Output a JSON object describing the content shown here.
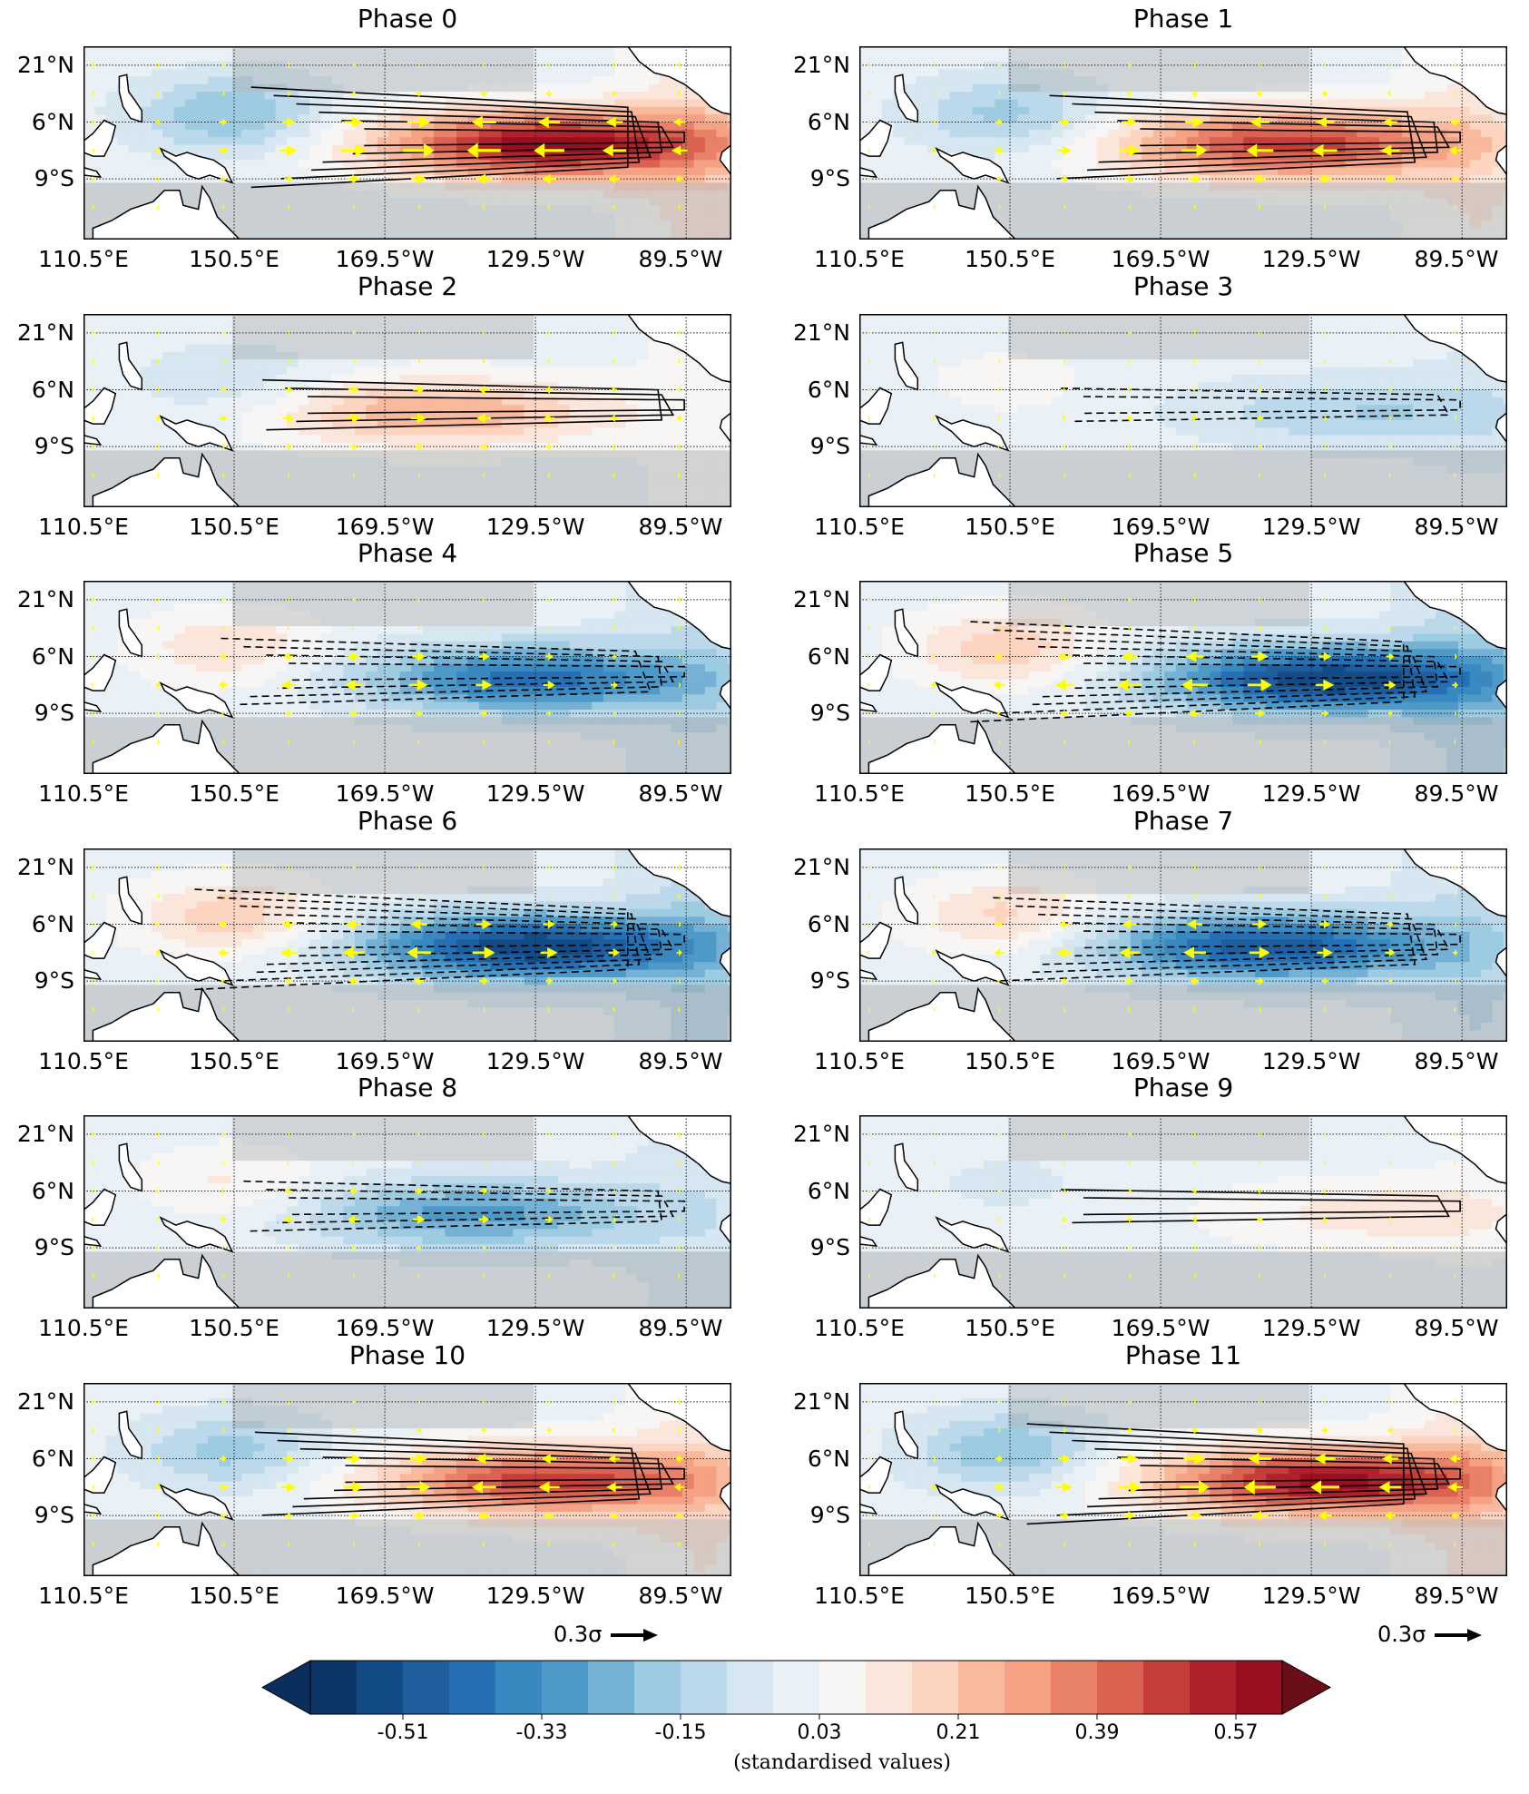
{
  "chart_data": {
    "type": "heatmap",
    "description_units": "standardised values",
    "map_extent": {
      "lon_min": 110.5,
      "lon_max": 282.5,
      "lat_min": -25,
      "lat_max": 26
    },
    "lat_ticks": [
      {
        "value": 21,
        "label": "21°N"
      },
      {
        "value": 6,
        "label": "6°N"
      },
      {
        "value": -9,
        "label": "9°S"
      }
    ],
    "lon_ticks": [
      {
        "value": 110.5,
        "label": "110.5°E"
      },
      {
        "value": 150.5,
        "label": "150.5°E"
      },
      {
        "value": 190.5,
        "label": "169.5°W"
      },
      {
        "value": 230.5,
        "label": "129.5°W"
      },
      {
        "value": 270.5,
        "label": "89.5°W"
      }
    ],
    "panels": [
      {
        "title": "Phase 0",
        "sst_amp": 0.62,
        "sst_center_lon": 235,
        "wind_amp": 0.35,
        "wind_center_lon": 215,
        "contour_sign": 1
      },
      {
        "title": "Phase 1",
        "sst_amp": 0.5,
        "sst_center_lon": 225,
        "wind_amp": 0.28,
        "wind_center_lon": 215,
        "contour_sign": 1
      },
      {
        "title": "Phase 2",
        "sst_amp": 0.27,
        "sst_center_lon": 205,
        "wind_amp": 0.15,
        "wind_center_lon": 200,
        "contour_sign": 1
      },
      {
        "title": "Phase 3",
        "sst_amp": -0.15,
        "sst_center_lon": 245,
        "wind_amp": -0.08,
        "wind_center_lon": 200,
        "contour_sign": -1
      },
      {
        "title": "Phase 4",
        "sst_amp": -0.42,
        "sst_center_lon": 230,
        "wind_amp": -0.22,
        "wind_center_lon": 195,
        "contour_sign": -1
      },
      {
        "title": "Phase 5",
        "sst_amp": -0.57,
        "sst_center_lon": 235,
        "wind_amp": -0.3,
        "wind_center_lon": 200,
        "contour_sign": -1
      },
      {
        "title": "Phase 6",
        "sst_amp": -0.57,
        "sst_center_lon": 230,
        "wind_amp": -0.28,
        "wind_center_lon": 200,
        "contour_sign": -1
      },
      {
        "title": "Phase 7",
        "sst_amp": -0.5,
        "sst_center_lon": 220,
        "wind_amp": -0.26,
        "wind_center_lon": 200,
        "contour_sign": -1
      },
      {
        "title": "Phase 8",
        "sst_amp": -0.3,
        "sst_center_lon": 215,
        "wind_amp": -0.15,
        "wind_center_lon": 195,
        "contour_sign": -1
      },
      {
        "title": "Phase 9",
        "sst_amp": 0.12,
        "sst_center_lon": 250,
        "wind_amp": 0.05,
        "wind_center_lon": 200,
        "contour_sign": 1
      },
      {
        "title": "Phase 10",
        "sst_amp": 0.5,
        "sst_center_lon": 235,
        "wind_amp": 0.25,
        "wind_center_lon": 210,
        "contour_sign": 1
      },
      {
        "title": "Phase 11",
        "sst_amp": 0.6,
        "sst_center_lon": 235,
        "wind_amp": 0.33,
        "wind_center_lon": 215,
        "contour_sign": 1
      }
    ],
    "quiver_key": {
      "label": "0.3σ",
      "value": 0.3
    },
    "colorbar": {
      "levels": [
        -0.63,
        -0.57,
        -0.51,
        -0.45,
        -0.39,
        -0.33,
        -0.27,
        -0.21,
        -0.15,
        -0.09,
        -0.03,
        0.03,
        0.09,
        0.15,
        0.21,
        0.27,
        0.33,
        0.39,
        0.45,
        0.51,
        0.57,
        0.63
      ],
      "colors": [
        "#0b3566",
        "#134b87",
        "#1f5e9d",
        "#2570b4",
        "#3a88c0",
        "#4d9ac8",
        "#74b1d5",
        "#9dcbe1",
        "#bbd9ea",
        "#d6e7f1",
        "#eaf1f6",
        "#f7f6f5",
        "#fbe6db",
        "#fcd4c0",
        "#f8b99c",
        "#f4a283",
        "#e8806a",
        "#d96251",
        "#c63e3a",
        "#b0212c",
        "#980f22",
        "#7a0422"
      ],
      "under_color": "#0a2f5c",
      "over_color": "#6a0f1a",
      "ticks": [
        {
          "value": -0.51,
          "label": "-0.51"
        },
        {
          "value": -0.33,
          "label": "-0.33"
        },
        {
          "value": -0.15,
          "label": "-0.15"
        },
        {
          "value": 0.03,
          "label": "0.03"
        },
        {
          "value": 0.21,
          "label": "0.21"
        },
        {
          "value": 0.39,
          "label": "0.39"
        },
        {
          "value": 0.57,
          "label": "0.57"
        }
      ],
      "label": "(standardised values)"
    },
    "colors": {
      "vector": "#ffff00",
      "contour": "#000000",
      "significance": "#808080",
      "land": "#ffffff"
    }
  }
}
